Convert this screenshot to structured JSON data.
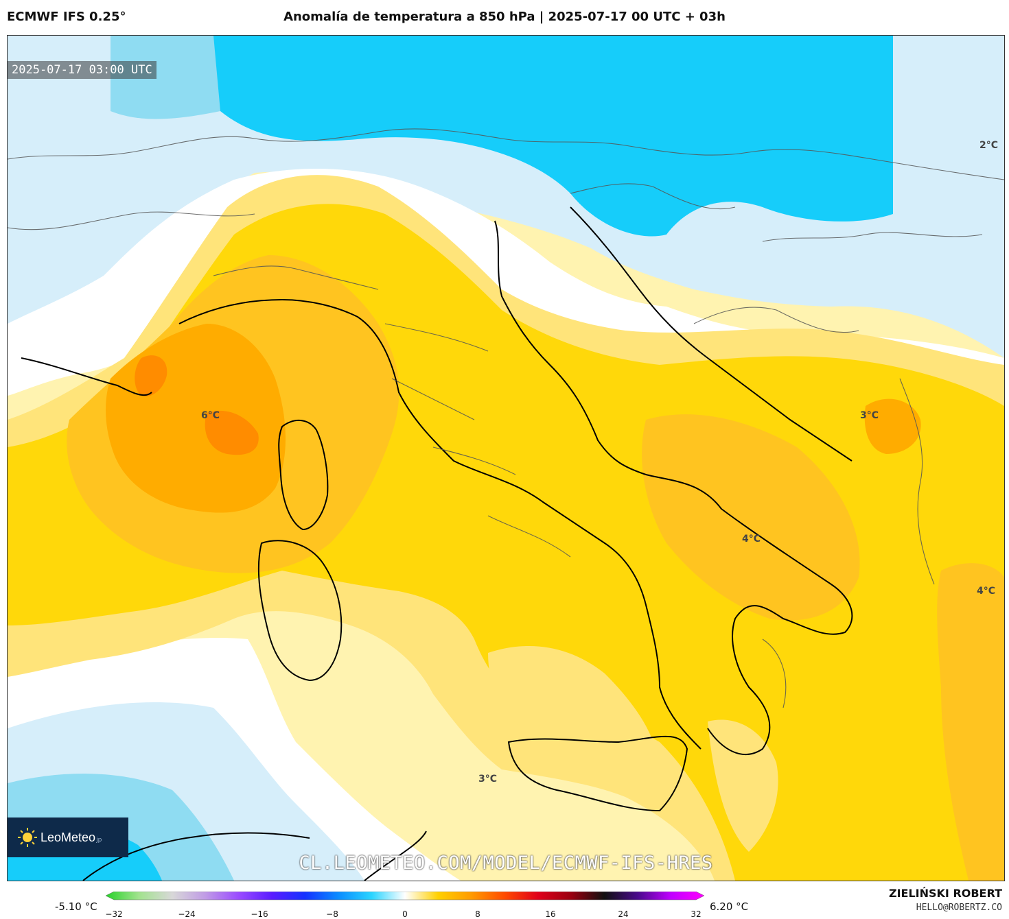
{
  "header": {
    "model": "ECMWF IFS 0.25°",
    "title": "Anomalía de temperatura a 850 hPa | 2025-07-17 00 UTC + 03h"
  },
  "map": {
    "timestamp": "2025-07-17 03:00 UTC",
    "watermark_url": "CL.LEOMETEO.COM/MODEL/ECMWF-IFS-HRES",
    "logo_text": "LeoMeteo",
    "logo_suffix": "jp",
    "labels": [
      "2°C",
      "6°C",
      "3°C",
      "4°C",
      "4°C",
      "3°C"
    ],
    "colors": {
      "deep_blue": "#16cdfa",
      "mid_blue": "#8fdcf2",
      "light_blue": "#d6eefa",
      "white": "#ffffff",
      "pale_yellow": "#fff3b0",
      "light_yellow": "#ffe47a",
      "yellow": "#ffd80a",
      "gold": "#ffc420",
      "orange": "#ffac00",
      "dark_orange": "#ff8c00"
    }
  },
  "colorbar": {
    "min_label": "-5.10 °C",
    "max_label": "6.20 °C",
    "ticks": [
      "−32",
      "−24",
      "−16",
      "−8",
      "0",
      "8",
      "16",
      "24",
      "32"
    ],
    "range": [
      -32,
      32
    ],
    "stops": [
      "#28d22a",
      "#a2e38e",
      "#d8d8d8",
      "#c09be6",
      "#9a4bff",
      "#5a1cff",
      "#1432ff",
      "#0a8cff",
      "#2ad4ff",
      "#ffffff",
      "#ffd000",
      "#ff9a00",
      "#ff4a00",
      "#e0001a",
      "#9a0010",
      "#111111",
      "#4a0a8c",
      "#c000ff",
      "#ff00ff"
    ]
  },
  "author": {
    "name": "ZIELIŃSKI ROBERT",
    "email": "HELLO@ROBERTZ.CO"
  }
}
